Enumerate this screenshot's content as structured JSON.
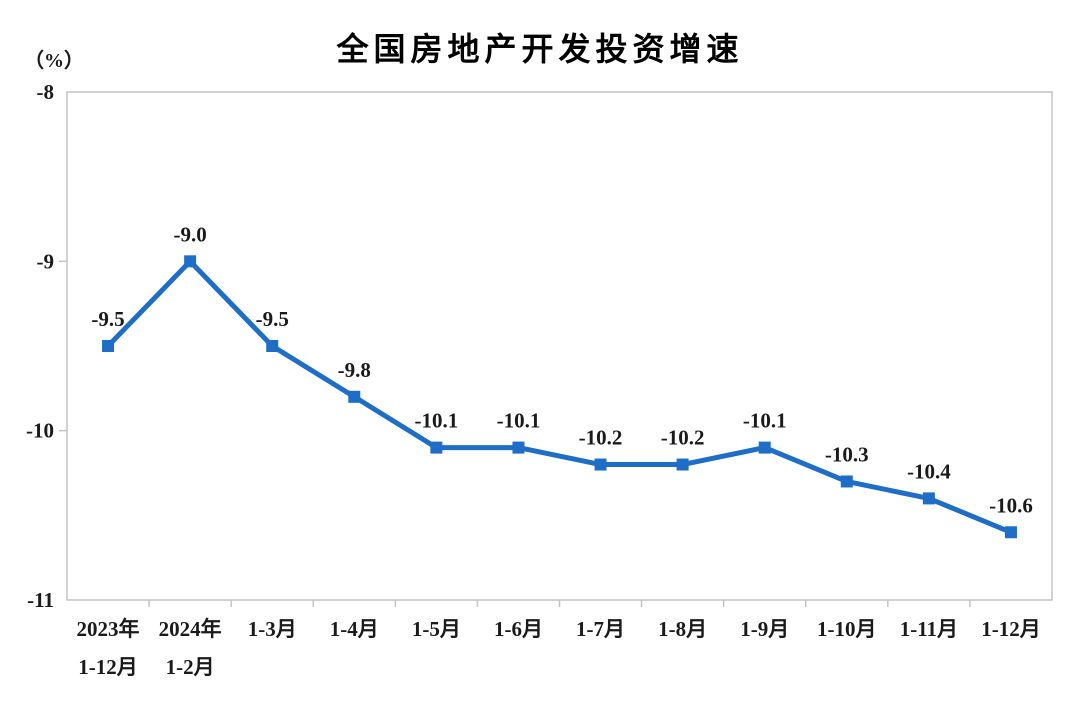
{
  "page": {
    "background": "#ffffff"
  },
  "chart_data": {
    "type": "line",
    "title": "全国房地产开发投资增速",
    "unit_label": "（%）",
    "categories": [
      [
        "2023年",
        "1-12月"
      ],
      [
        "2024年",
        "1-2月"
      ],
      [
        "1-3月"
      ],
      [
        "1-4月"
      ],
      [
        "1-5月"
      ],
      [
        "1-6月"
      ],
      [
        "1-7月"
      ],
      [
        "1-8月"
      ],
      [
        "1-9月"
      ],
      [
        "1-10月"
      ],
      [
        "1-11月"
      ],
      [
        "1-12月"
      ]
    ],
    "values": [
      -9.5,
      -9.0,
      -9.5,
      -9.8,
      -10.1,
      -10.1,
      -10.2,
      -10.2,
      -10.1,
      -10.3,
      -10.4,
      -10.6
    ],
    "data_labels": [
      "-9.5",
      "-9.0",
      "-9.5",
      "-9.8",
      "-10.1",
      "-10.1",
      "-10.2",
      "-10.2",
      "-10.1",
      "-10.3",
      "-10.4",
      "-10.6"
    ],
    "ylabel": "（%）",
    "xlabel": "",
    "ylim": [
      -11,
      -8
    ],
    "yticks": [
      -8,
      -9,
      -10,
      -11
    ],
    "ytick_labels": [
      "-8",
      "-9",
      "-10",
      "-11"
    ],
    "grid": false,
    "legend_position": "none",
    "marker_shape": "square",
    "colors": {
      "line": "#1E6EC8",
      "marker": "#1E6EC8",
      "label_text": "#1a1a1a",
      "axis_border": "#c3c3c3",
      "title_text": "#000000"
    }
  }
}
